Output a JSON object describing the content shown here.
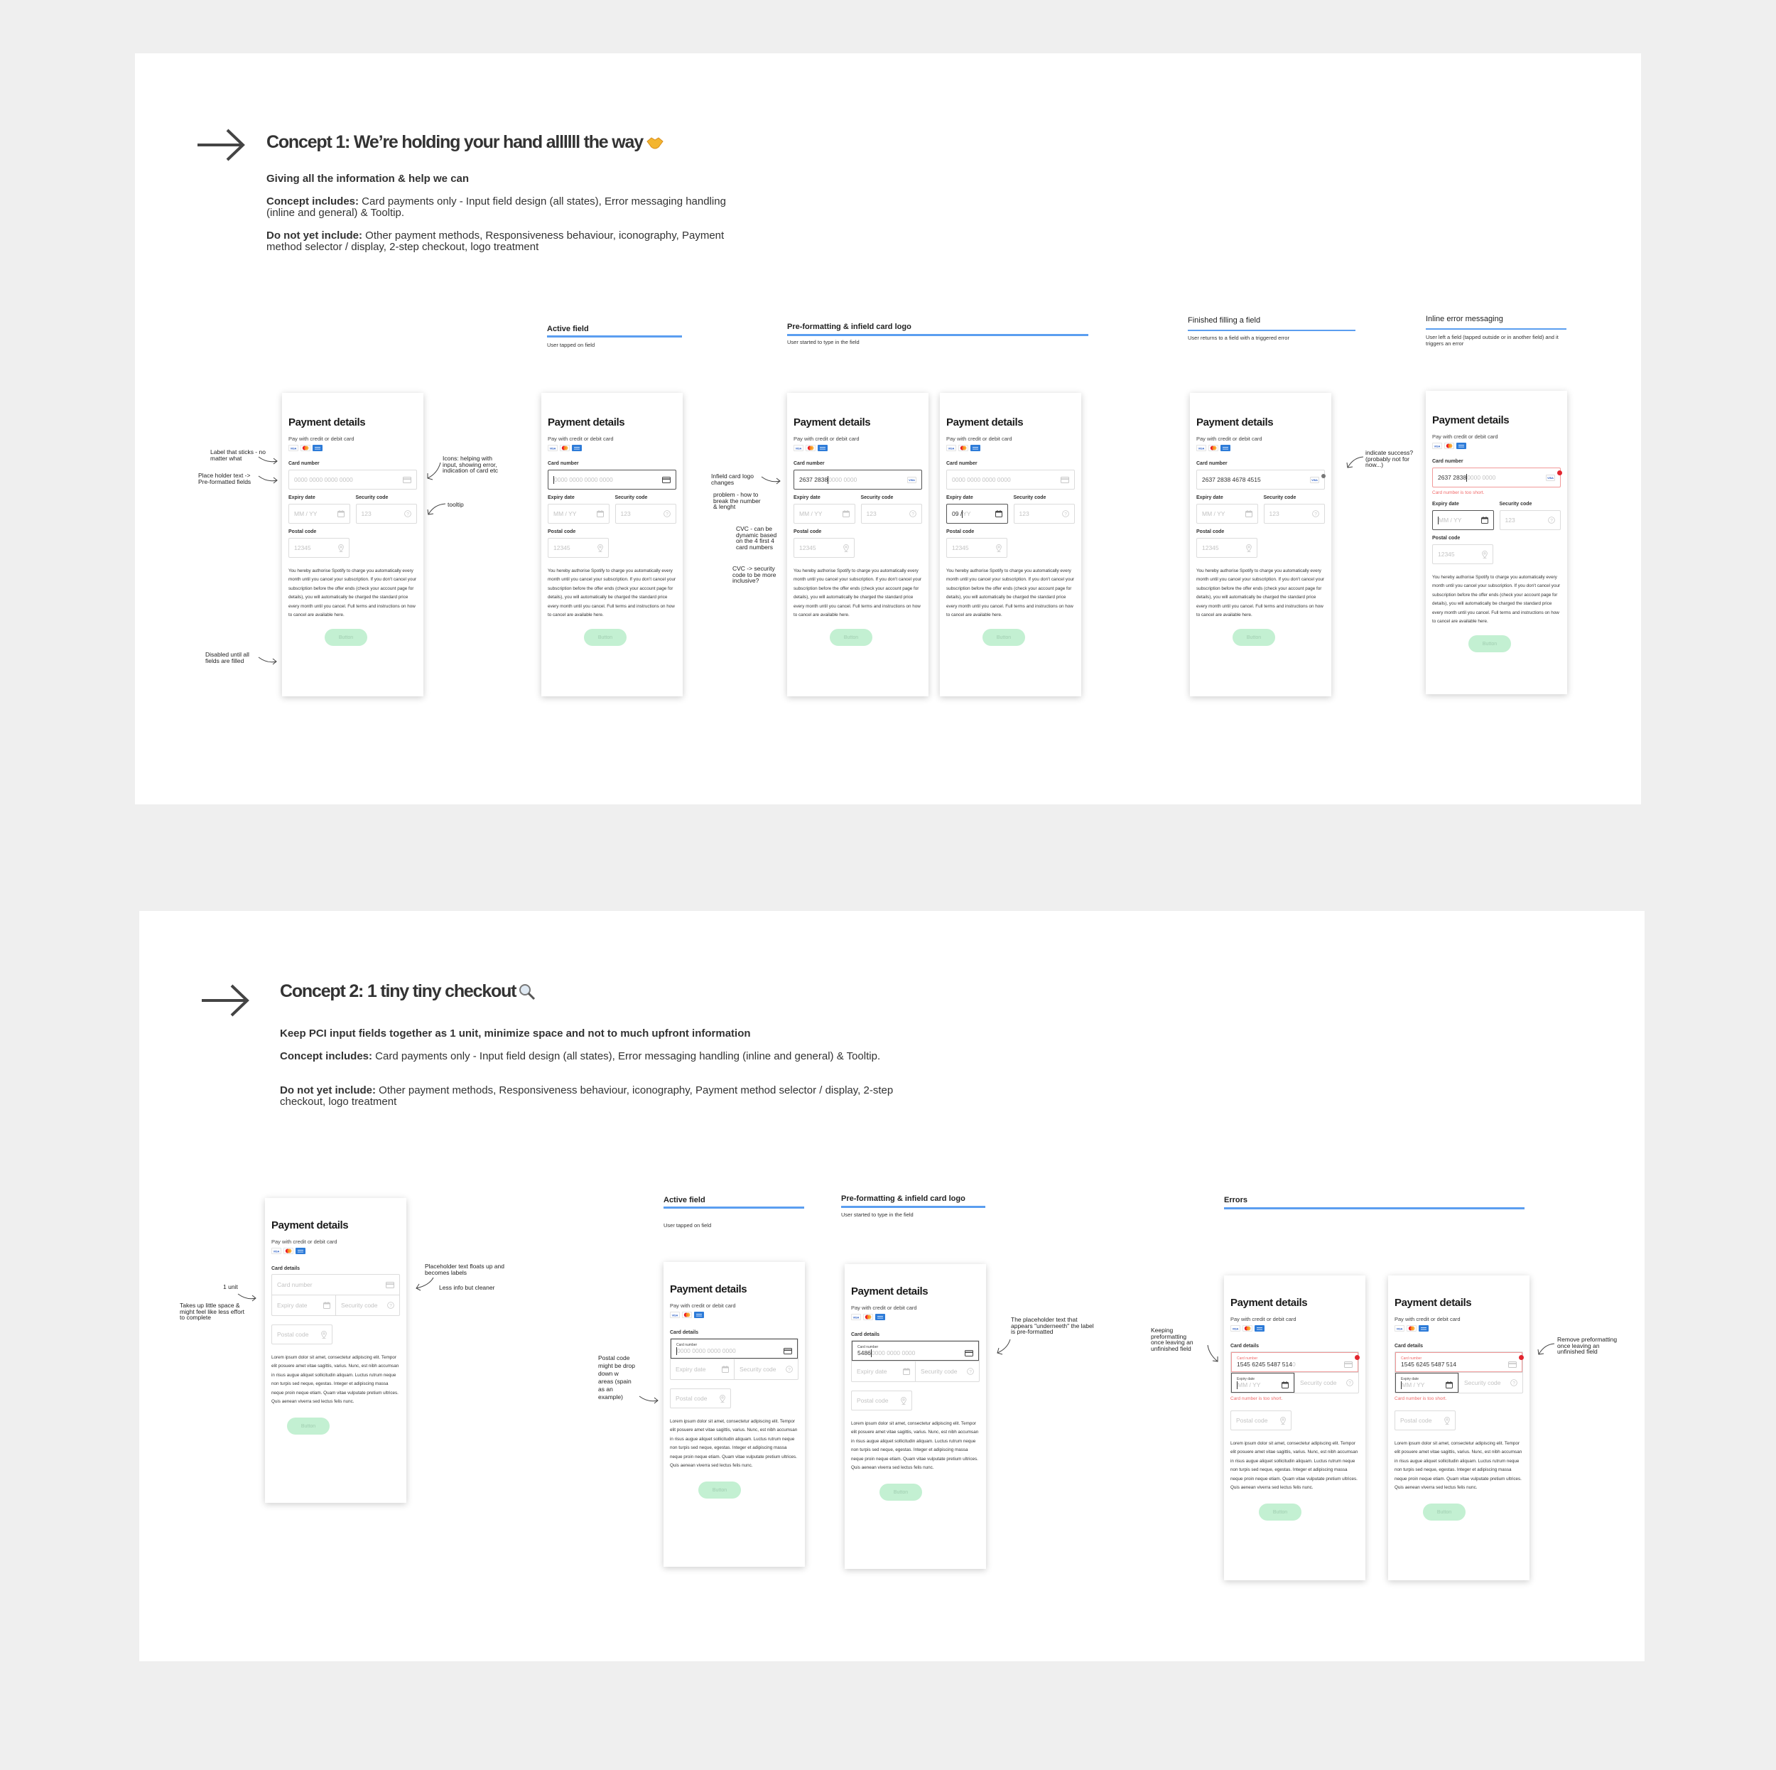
{
  "colors": {
    "accent_line": "#5b9ef0",
    "button_disabled": "#c3f0d2",
    "error": "#e3262f",
    "background": "#efefef"
  },
  "concept1": {
    "title": "Concept 1: We’re holding your hand allllll the way",
    "title_icon": "handshake-icon",
    "subtitle": "Giving all the information & help we can",
    "includes_label": "Concept includes:",
    "includes_text": " Card payments only - Input field design (all states), Error messaging handling (inline and general) & Tooltip.",
    "excludes_label": "Do not yet include:",
    "excludes_text": " Other payment methods, Responsiveness behaviour, iconography, Payment method selector / display, 2-step checkout, logo treatment",
    "sections": [
      {
        "title": "Active field",
        "sub": "User tapped on field"
      },
      {
        "title": "Pre-formatting & infield card logo",
        "sub": "User started to type in the field"
      },
      {
        "title": "Finished filling a field",
        "sub": "User returns to a field with a triggered error"
      },
      {
        "title": "Inline error messaging",
        "sub": "User left a field (tapped outside or in another field) and it triggers an error"
      }
    ],
    "annotations": [
      "Label that sticks - no matter what",
      "Place holder text  -> Pre-formatted fields",
      "Icons: helping with input, showing error, indication of card etc",
      "tooltip",
      "Disabled until all fields are filled",
      "Infield card logo changes",
      "problem - how to break the number & lenght",
      "CVC - can be dynamic based on the 4 first 4 card numbers",
      "CVC -> security code to be more inclusive?",
      "indicate success? (probably not for now...)"
    ],
    "form": {
      "title": "Payment details",
      "subtitle": "Pay with credit or debit card",
      "card_label": "Card number",
      "expiry_label": "Expiry date",
      "security_label": "Security code",
      "postal_label": "Postal code",
      "card_placeholder": "0000 0000 0000 0000",
      "expiry_placeholder": "MM / YY",
      "security_placeholder": "123",
      "postal_placeholder": "12345",
      "body": "You hereby authorise Spotify to charge you automatically every month until you cancel your subscription. If you don't cancel your subscription before the offer ends  (check your account page for details), you will automatically be charged the standard price every month until you cancel. Full terms and instructions on how to cancel are available here.",
      "button": "Button",
      "error_message": "Card number is too short."
    },
    "cards": [
      {
        "card": {
          "value": "",
          "placeholder": "0000 0000 0000 0000",
          "state": "default",
          "cursor": false,
          "icon": "credit-card-icon"
        },
        "expiry": {
          "value": "",
          "placeholder": "MM / YY",
          "state": "default",
          "cursor": false
        },
        "error": ""
      },
      {
        "card": {
          "value": "",
          "placeholder": "0000 0000 0000 0000",
          "state": "active",
          "cursor": true,
          "icon": "credit-card-icon"
        },
        "expiry": {
          "value": "",
          "placeholder": "MM / YY",
          "state": "default",
          "cursor": false
        },
        "error": ""
      },
      {
        "card": {
          "value": "2637 2838",
          "placeholder": "0000 0000",
          "state": "active",
          "cursor": true,
          "icon": "visa-icon"
        },
        "expiry": {
          "value": "",
          "placeholder": "MM / YY",
          "state": "default",
          "cursor": false
        },
        "error": ""
      },
      {
        "card": {
          "value": "",
          "placeholder": "0000 0000 0000 0000",
          "state": "default",
          "cursor": false,
          "icon": "credit-card-icon"
        },
        "expiry": {
          "value": "09 /",
          "placeholder": "YY",
          "state": "active",
          "cursor": true
        },
        "error": ""
      },
      {
        "card": {
          "value": "2637 2838 4678 4515",
          "placeholder": "",
          "state": "filled",
          "cursor": false,
          "icon": "visa-icon",
          "badge": "success"
        },
        "expiry": {
          "value": "",
          "placeholder": "MM / YY",
          "state": "default",
          "cursor": true
        },
        "error": ""
      },
      {
        "card": {
          "value": "2637 2838",
          "placeholder": "0000 0000",
          "state": "error",
          "cursor": true,
          "icon": "visa-icon",
          "badge": "error"
        },
        "expiry": {
          "value": "",
          "placeholder": "MM / YY",
          "state": "active",
          "cursor": true
        },
        "error": "Card number is too short."
      }
    ]
  },
  "concept2": {
    "title": "Concept 2: 1 tiny tiny checkout",
    "title_icon": "magnifier-icon",
    "subtitle": "Keep PCI input fields together as 1 unit, minimize space and not to much upfront information",
    "includes_label": "Concept includes:",
    "includes_text": " Card payments only - Input field design (all states), Error messaging handling (inline and general) & Tooltip.",
    "excludes_label": "Do not yet include:",
    "excludes_text": " Other payment methods, Responsiveness behaviour, iconography, Payment method selector / display, 2-step checkout, logo treatment",
    "sections": [
      {
        "title": "Active field",
        "sub": "User tapped on field"
      },
      {
        "title": "Pre-formatting & infield card logo",
        "sub": "User started to type in the field"
      },
      {
        "title": "Errors",
        "sub": ""
      }
    ],
    "annotations": [
      "1 unit",
      "Takes up little space & might feel like less effort to complete",
      "Placeholder text floats up and becomes labels",
      "Less info but cleaner",
      "Postal code might be drop down w areas (spain as an example)",
      "The placeholder text that appears \"underneeth\" the label is pre-formatted",
      "Keeping preformatting once leaving an unfinished field",
      "Remove preformatting once leaving an unfinished field"
    ],
    "form": {
      "title": "Payment details",
      "subtitle": "Pay with credit or debit card",
      "group_label": "Card details",
      "card_label": "Card number",
      "expiry_label": "Expiry date",
      "security_label": "Security code",
      "postal_label": "Postal code",
      "body": "Lorem ipsum dolor sit amet, consectetur adipiscing elit. Tempor elit posuere amet vitae sagittis, varius. Nunc, est nibh accumsan in risus augue aliquet sollicitudin aliquam. Luctus rutrum neque non turpis sed neque, egestas. Integer et adipiscing massa neque proin neque etiam. Quam vitae vulputate pretium ultrices. Quis aenean viverra sed lectus felis nunc.",
      "button": "Button",
      "error_message": "Card number is too short."
    },
    "cards": [
      {
        "card": {
          "floating": false,
          "value": "",
          "placeholder": "Card number",
          "state": "default",
          "cursor": false
        },
        "expiry": {
          "floating": false,
          "value": "",
          "placeholder": "Expiry date",
          "state": "default"
        },
        "error": ""
      },
      {
        "card": {
          "floating": true,
          "value": "",
          "placeholder": "0000 0000 0000 0000",
          "state": "active",
          "cursor": true
        },
        "expiry": {
          "floating": false,
          "value": "",
          "placeholder": "Expiry date",
          "state": "default"
        },
        "error": ""
      },
      {
        "card": {
          "floating": true,
          "value": "5486",
          "placeholder": "0000 0000 0000",
          "state": "active",
          "cursor": true
        },
        "expiry": {
          "floating": false,
          "value": "",
          "placeholder": "Expiry date",
          "state": "default"
        },
        "error": ""
      },
      {
        "card": {
          "floating": true,
          "value": "1545 6245 5487 514",
          "placeholder": "0",
          "state": "error",
          "cursor": false
        },
        "expiry": {
          "floating": true,
          "value": "",
          "placeholder": "MM / YY",
          "state": "active",
          "cursor": true
        },
        "error": "Card number is too short."
      },
      {
        "card": {
          "floating": true,
          "value": "1545 6245 5487 514",
          "placeholder": "",
          "state": "error",
          "cursor": false
        },
        "expiry": {
          "floating": true,
          "value": "",
          "placeholder": "MM / YY",
          "state": "active",
          "cursor": true
        },
        "error": "Card number is too short."
      }
    ]
  }
}
